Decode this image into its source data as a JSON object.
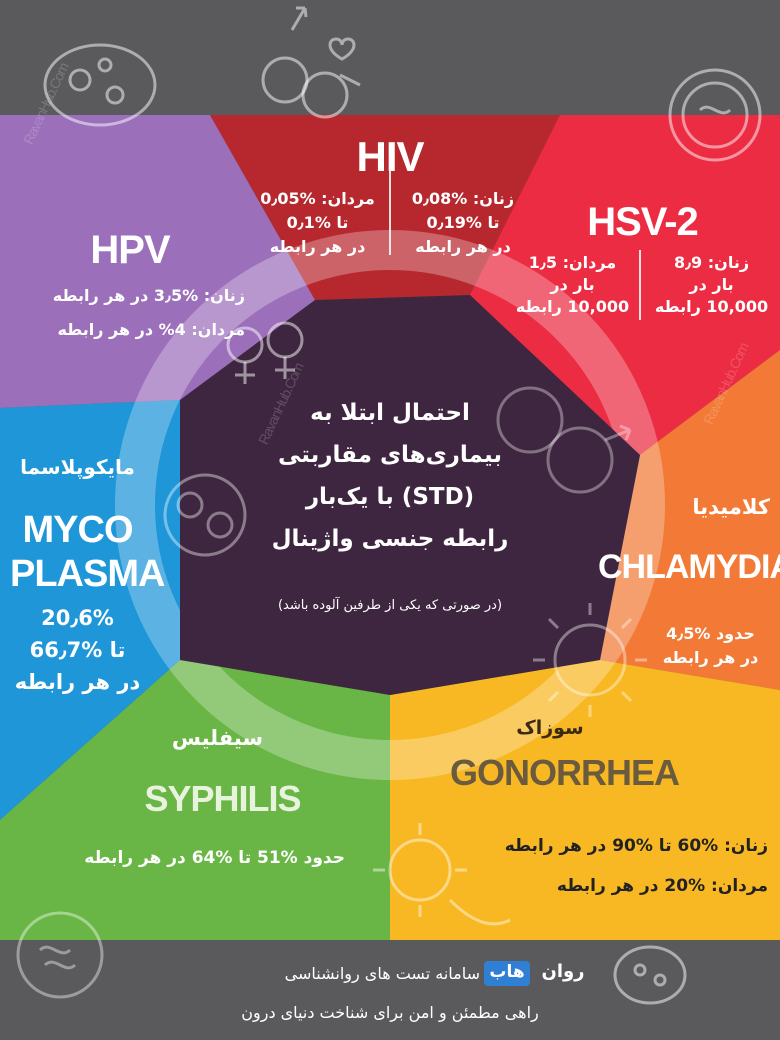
{
  "colors": {
    "background": "#5a5a5c",
    "hpv": "#9b6fba",
    "hiv": "#b7282e",
    "hsv2": "#ec2c43",
    "chlamydia": "#f27a36",
    "gonorrhea": "#f8b823",
    "syphilis": "#69b646",
    "myco": "#1e96d8",
    "center": "#3f2640",
    "brand_badge": "#2f7fd4"
  },
  "watermark_text": "RavanHub.Com",
  "hiv": {
    "name": "HIV",
    "women": [
      "زنان: %0٫08",
      "تا %0٫19",
      "در هر رابطه"
    ],
    "men": [
      "مردان: %0٫05",
      "تا %0٫1",
      "در هر رابطه"
    ]
  },
  "hsv2": {
    "name": "HSV-2",
    "women": [
      "زنان: 8٫9",
      "بار در",
      "10,000 رابطه"
    ],
    "men": [
      "مردان: 1٫5",
      "بار در",
      "10,000 رابطه"
    ]
  },
  "hpv": {
    "name": "HPV",
    "women": "زنان: %3٫5 در هر رابطه",
    "men": "مردان: 4% در هر رابطه"
  },
  "myco": {
    "persian": "مایکوپلاسما",
    "name_line1": "MYCO",
    "name_line2": "PLASMA",
    "stats": [
      "20٫6%",
      "تا %66٫7",
      "در هر رابطه"
    ]
  },
  "chlamydia": {
    "persian": "کلامیدیا",
    "name": "CHLAMYDIA",
    "stats": [
      "حدود %4٫5",
      "در هر رابطه"
    ]
  },
  "gonorrhea": {
    "persian": "سوزاک",
    "name": "GONORRHEA",
    "women": "زنان: %60 تا %90 در هر رابطه",
    "men": "مردان: %20 در هر رابطه"
  },
  "syphilis": {
    "persian": "سیفلیس",
    "name": "SYPHILIS",
    "stats": "حدود %51 تا %64 در هر رابطه"
  },
  "center": {
    "title_lines": [
      "احتمال ابتلا به",
      "بیماری‌های مقاربتی",
      "(STD) با یک‌بار",
      "رابطه جنسی واژینال"
    ],
    "note": "(در صورتی که یکی از طرفین آلوده باشد)"
  },
  "footer": {
    "brand_ravan": "روان",
    "brand_hub": "هاب",
    "tagline1": "سامانه تست های روانشناسی",
    "tagline2": "راهی مطمئن و امن برای شناخت دنیای درون"
  }
}
